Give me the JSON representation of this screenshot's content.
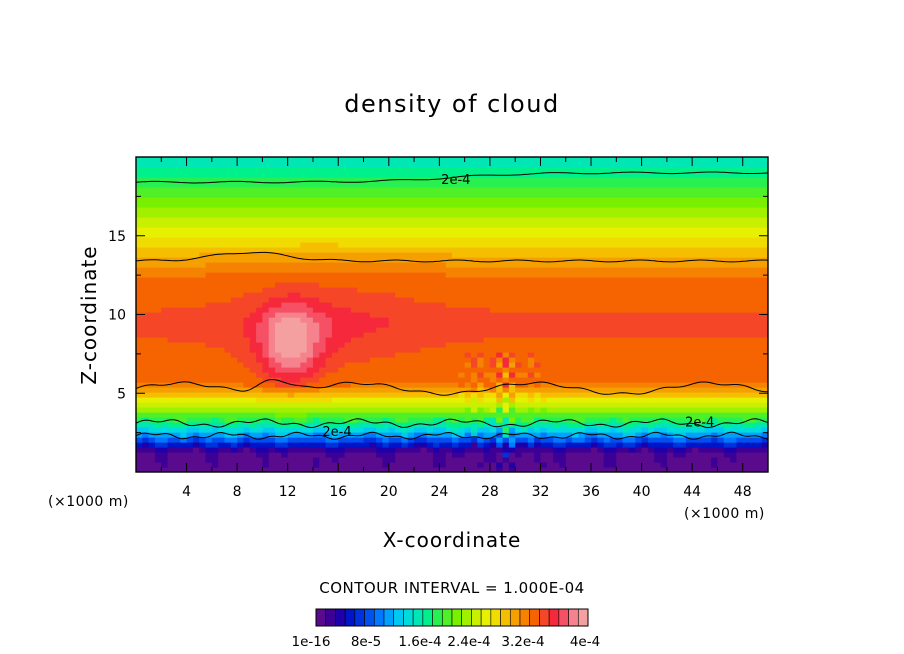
{
  "chart_data": {
    "type": "heatmap",
    "title": "density of cloud",
    "xlabel": "X-coordinate",
    "ylabel": "Z-coordinate",
    "x_unit": "(×1000 m)",
    "y_unit": "(×1000 m)",
    "xlim": [
      0,
      50
    ],
    "ylim": [
      0,
      20
    ],
    "x_ticks": [
      4,
      8,
      12,
      16,
      20,
      24,
      28,
      32,
      36,
      40,
      44,
      48
    ],
    "x_tick_labels": [
      "4",
      "8",
      "12",
      "16",
      "20",
      "24",
      "28",
      "32",
      "36",
      "40",
      "44",
      "48"
    ],
    "y_ticks": [
      5,
      10,
      15
    ],
    "y_tick_labels": [
      "5",
      "10",
      "15"
    ],
    "contour_interval_text": "CONTOUR INTERVAL = 1.000E-04",
    "contour_labels": [
      {
        "text": "2e-4",
        "x": 25.3,
        "z": 18.6
      },
      {
        "text": "2e-4",
        "x": 15.9,
        "z": 2.6
      },
      {
        "text": "2e-4",
        "x": 44.6,
        "z": 3.2
      }
    ],
    "colorbar": {
      "colors": [
        "#5a0a8c",
        "#3c0096",
        "#1e00aa",
        "#0014c8",
        "#0032dc",
        "#0050f0",
        "#0078ff",
        "#00a0ff",
        "#00c8f0",
        "#00dcdc",
        "#00e6b4",
        "#00f08c",
        "#28f050",
        "#50f028",
        "#78f000",
        "#a0f000",
        "#c8f000",
        "#e6f000",
        "#f0dc00",
        "#f5be00",
        "#f5a000",
        "#f58200",
        "#f56400",
        "#f54628",
        "#f5283c",
        "#f55064",
        "#f5828c",
        "#f5a0a0"
      ],
      "tick_labels": [
        "1e-16",
        "8e-5",
        "1.6e-4",
        "2.4e-4",
        "3.2e-4",
        "4e-4"
      ]
    }
  }
}
